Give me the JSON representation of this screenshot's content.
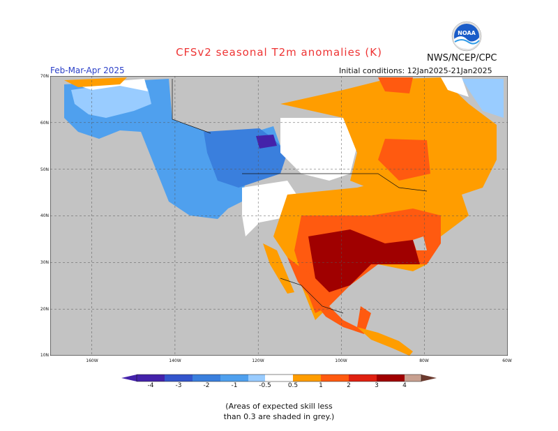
{
  "header": {
    "title": "CFSv2 seasonal T2m anomalies (K)",
    "agency": "NWS/NCEP/CPC",
    "season": "Feb-Mar-Apr 2025",
    "initial_conditions": "Initial conditions: 12Jan2025-21Jan2025"
  },
  "logo": {
    "text": "NOAA",
    "colors": {
      "sky": "#1a5cc8",
      "wave": "#ffffff",
      "ring": "#e0e0e0"
    }
  },
  "map": {
    "lat_labels": [
      "70N",
      "60N",
      "50N",
      "40N",
      "30N",
      "20N",
      "10N"
    ],
    "lon_labels": [
      "160W",
      "140W",
      "120W",
      "100W",
      "80W",
      "60W"
    ],
    "lon_range": [
      -170,
      -60
    ],
    "lat_range": [
      10,
      70
    ],
    "ocean_color": "#c3c3c3",
    "land_neutral_color": "#ffffff"
  },
  "colorbar": {
    "labels": [
      "-4",
      "-3",
      "-2",
      "-1",
      "-0.5",
      "0.5",
      "1",
      "2",
      "3",
      "4"
    ],
    "colors": [
      "#4422aa",
      "#3355cc",
      "#3a7fdd",
      "#4fa0ee",
      "#99ccff",
      "#ffffff",
      "#ff9d00",
      "#ff5a10",
      "#e02010",
      "#a00000",
      "#c8a090",
      "#6b3a2e"
    ]
  },
  "footnote": {
    "line1": "(Areas of expected skill less",
    "line2": "than 0.3 are shaded in grey.)"
  }
}
